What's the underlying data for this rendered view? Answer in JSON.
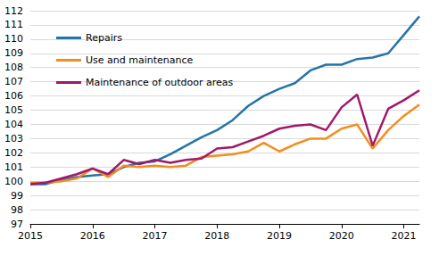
{
  "chart_data": {
    "type": "line",
    "categories": [
      "2015",
      null,
      null,
      null,
      "2016",
      null,
      null,
      null,
      "2017",
      null,
      null,
      null,
      "2018",
      null,
      null,
      null,
      "2019",
      null,
      null,
      null,
      "2020",
      null,
      null,
      null,
      "2021",
      null
    ],
    "series": [
      {
        "name": "Repairs",
        "color": "#2574a9",
        "values": [
          99.8,
          99.8,
          100.1,
          100.3,
          100.4,
          100.5,
          101.0,
          101.3,
          101.4,
          101.9,
          102.5,
          103.1,
          103.6,
          104.3,
          105.3,
          106.0,
          106.5,
          106.9,
          107.8,
          108.2,
          108.2,
          108.6,
          108.7,
          109.0,
          110.3,
          111.6
        ]
      },
      {
        "name": "Use and maintenance",
        "color": "#f28e1c",
        "values": [
          99.9,
          99.9,
          100.0,
          100.2,
          100.9,
          100.3,
          101.1,
          101.0,
          101.1,
          101.0,
          101.1,
          101.7,
          101.8,
          101.9,
          102.1,
          102.7,
          102.1,
          102.6,
          103.0,
          103.0,
          103.7,
          104.0,
          102.3,
          103.6,
          104.6,
          105.4
        ]
      },
      {
        "name": "Maintenance of outdoor areas",
        "color": "#a0186c",
        "values": [
          99.8,
          99.9,
          100.2,
          100.5,
          100.9,
          100.5,
          101.5,
          101.2,
          101.5,
          101.3,
          101.5,
          101.6,
          102.3,
          102.4,
          102.8,
          103.2,
          103.7,
          103.9,
          104.0,
          103.6,
          105.2,
          106.1,
          102.5,
          105.1,
          105.7,
          106.4
        ]
      }
    ],
    "ylim": [
      97,
      112
    ],
    "yticks": [
      97,
      98,
      99,
      100,
      101,
      102,
      103,
      104,
      105,
      106,
      107,
      108,
      109,
      110,
      111,
      112
    ],
    "grid": true,
    "legend": "upper left"
  }
}
